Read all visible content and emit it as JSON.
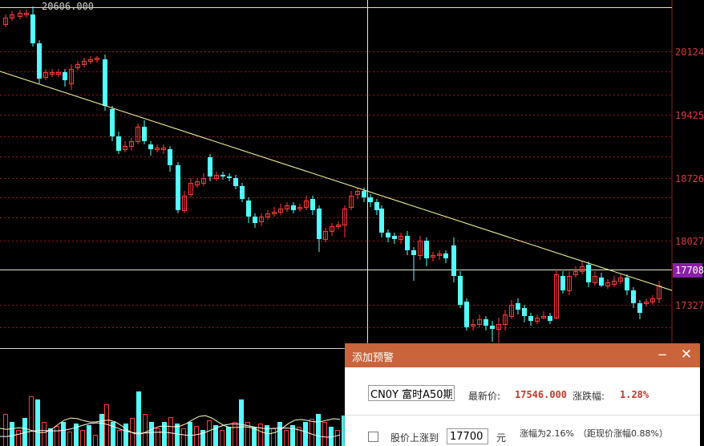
{
  "chart": {
    "high_marker": "20606.000",
    "current_price_tag": "17708",
    "axis_labels": [
      "20124",
      "19425",
      "18726",
      "18027",
      "17327"
    ]
  },
  "colors": {
    "up": "#ff3b3b",
    "down": "#54ffff",
    "trendline": "#ffffa0",
    "grid": "#8a1c1c",
    "dialog_header": "#c9643b"
  },
  "dialog": {
    "title": "添加预警",
    "minimize_icon": "−",
    "close_icon": "✕",
    "code_value": "CN0Y 富时A50期",
    "latest_price_label": "最新价:",
    "latest_price_value": "17546.000",
    "change_label": "涨跌幅:",
    "change_value": "1.28%",
    "rise_to_label": "股价上涨到",
    "rise_to_value": "17700",
    "unit": "元",
    "rise_pct_note": "涨幅为2.16%",
    "distance_note": "（距现价涨幅0.88%）"
  }
}
